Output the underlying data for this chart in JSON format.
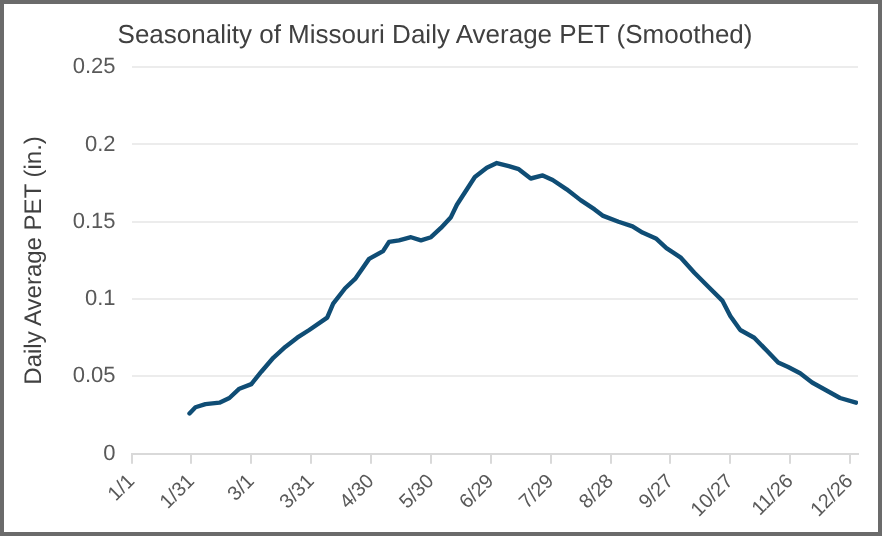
{
  "chart_data": {
    "type": "line",
    "title": "Seasonality of Missouri Daily Average PET (Smoothed)",
    "ylabel": "Daily Average PET (in.)",
    "x": [
      "--01-30",
      "--02-02",
      "--02-07",
      "--02-14",
      "--02-19",
      "--02-24",
      "--03-01",
      "--03-06",
      "--03-12",
      "--03-18",
      "--03-24",
      "--03-30",
      "--04-08",
      "--04-11",
      "--04-17",
      "--04-22",
      "--04-29",
      "--05-06",
      "--05-09",
      "--05-14",
      "--05-20",
      "--05-25",
      "--05-30",
      "--06-04",
      "--06-09",
      "--06-12",
      "--06-21",
      "--06-27",
      "--07-02",
      "--07-08",
      "--07-13",
      "--07-19",
      "--07-25",
      "--07-30",
      "--08-06",
      "--08-13",
      "--08-20",
      "--08-24",
      "--09-01",
      "--09-08",
      "--09-13",
      "--09-20",
      "--09-25",
      "--10-02",
      "--10-09",
      "--10-16",
      "--10-23",
      "--10-27",
      "--11-01",
      "--11-08",
      "--11-14",
      "--11-20",
      "--11-25",
      "--12-01",
      "--12-07",
      "--12-14",
      "--12-21",
      "--12-29"
    ],
    "series": [
      {
        "color": "#0f4d75",
        "values": [
          0.026,
          0.03,
          0.032,
          0.033,
          0.036,
          0.042,
          0.045,
          0.053,
          0.062,
          0.069,
          0.075,
          0.08,
          0.088,
          0.097,
          0.107,
          0.113,
          0.126,
          0.131,
          0.137,
          0.138,
          0.14,
          0.138,
          0.14,
          0.146,
          0.153,
          0.161,
          0.179,
          0.185,
          0.188,
          0.186,
          0.184,
          0.178,
          0.18,
          0.177,
          0.171,
          0.164,
          0.158,
          0.154,
          0.15,
          0.147,
          0.143,
          0.139,
          0.133,
          0.127,
          0.117,
          0.108,
          0.099,
          0.089,
          0.08,
          0.075,
          0.067,
          0.059,
          0.056,
          0.052,
          0.046,
          0.041,
          0.036,
          0.033
        ]
      }
    ],
    "xlim": [
      "--01-01",
      "--12-30"
    ],
    "xticks": [
      {
        "value": "--01-01",
        "label": "1/1"
      },
      {
        "value": "--01-31",
        "label": "1/31"
      },
      {
        "value": "--03-01",
        "label": "3/1"
      },
      {
        "value": "--03-31",
        "label": "3/31"
      },
      {
        "value": "--04-30",
        "label": "4/30"
      },
      {
        "value": "--05-30",
        "label": "5/30"
      },
      {
        "value": "--06-29",
        "label": "6/29"
      },
      {
        "value": "--07-29",
        "label": "7/29"
      },
      {
        "value": "--08-28",
        "label": "8/28"
      },
      {
        "value": "--09-27",
        "label": "9/27"
      },
      {
        "value": "--10-27",
        "label": "10/27"
      },
      {
        "value": "--11-26",
        "label": "11/26"
      },
      {
        "value": "--12-26",
        "label": "12/26"
      }
    ],
    "ylim": [
      0,
      0.25
    ],
    "yticks": [
      0,
      0.05,
      0.1,
      0.15,
      0.2,
      0.25
    ],
    "grid": "y",
    "legend": false,
    "marker": "none",
    "line_style": "solid"
  }
}
